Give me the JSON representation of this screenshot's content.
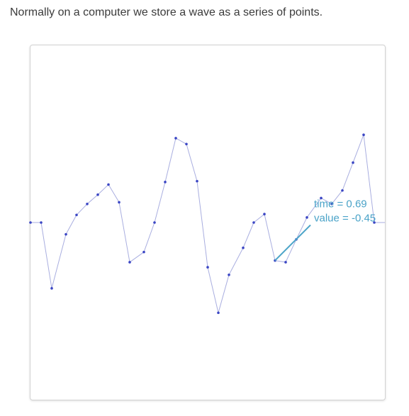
{
  "page": {
    "intro": "Normally on a computer we store a wave as a series of points."
  },
  "colors": {
    "line": "#a9aee0",
    "point": "#3b46c4",
    "highlight_line": "#4aa3c8",
    "highlight_text": "#4aa3c8"
  },
  "chart_data": {
    "type": "line",
    "xlim": [
      0,
      1
    ],
    "ylim": [
      -2.1,
      2.1
    ],
    "points": [
      {
        "t": 0.0,
        "v": 0.0
      },
      {
        "t": 0.03,
        "v": 0.0
      },
      {
        "t": 0.06,
        "v": -0.78
      },
      {
        "t": 0.1,
        "v": -0.14
      },
      {
        "t": 0.13,
        "v": 0.09
      },
      {
        "t": 0.16,
        "v": 0.22
      },
      {
        "t": 0.19,
        "v": 0.33
      },
      {
        "t": 0.22,
        "v": 0.45
      },
      {
        "t": 0.25,
        "v": 0.24
      },
      {
        "t": 0.28,
        "v": -0.47
      },
      {
        "t": 0.32,
        "v": -0.35
      },
      {
        "t": 0.35,
        "v": 0.0
      },
      {
        "t": 0.38,
        "v": 0.48
      },
      {
        "t": 0.41,
        "v": 1.0
      },
      {
        "t": 0.44,
        "v": 0.93
      },
      {
        "t": 0.47,
        "v": 0.49
      },
      {
        "t": 0.5,
        "v": -0.53
      },
      {
        "t": 0.53,
        "v": -1.07
      },
      {
        "t": 0.56,
        "v": -0.62
      },
      {
        "t": 0.6,
        "v": -0.3
      },
      {
        "t": 0.63,
        "v": 0.0
      },
      {
        "t": 0.66,
        "v": 0.1
      },
      {
        "t": 0.69,
        "v": -0.45
      },
      {
        "t": 0.72,
        "v": -0.47
      },
      {
        "t": 0.75,
        "v": -0.2
      },
      {
        "t": 0.78,
        "v": 0.06
      },
      {
        "t": 0.82,
        "v": 0.29
      },
      {
        "t": 0.85,
        "v": 0.22
      },
      {
        "t": 0.88,
        "v": 0.38
      },
      {
        "t": 0.91,
        "v": 0.71
      },
      {
        "t": 0.94,
        "v": 1.04
      },
      {
        "t": 0.97,
        "v": 0.0
      }
    ],
    "highlight": {
      "index": 22,
      "time_label": "time = 0.69",
      "value_label": "value = -0.45"
    }
  }
}
